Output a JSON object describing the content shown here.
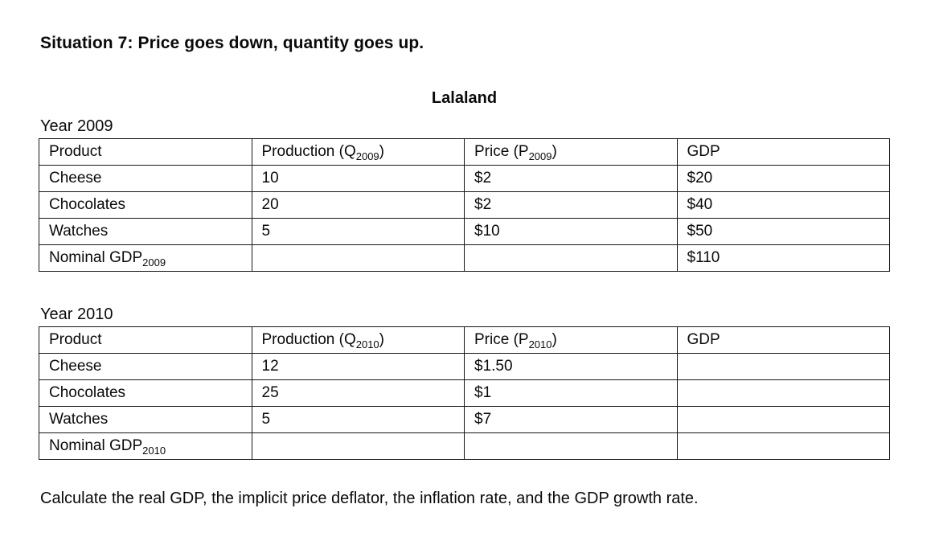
{
  "document": {
    "title": "Situation 7: Price goes down, quantity goes up.",
    "country_heading": "Lalaland",
    "instruction": "Calculate the real GDP, the implicit price deflator, the inflation rate, and the GDP growth rate."
  },
  "table_2009": {
    "section_label": "Year 2009",
    "headers": {
      "product": "Product",
      "production_pre": "Production (Q",
      "production_sub": "2009",
      "production_post": ")",
      "price_pre": "Price (P",
      "price_sub": "2009",
      "price_post": ")",
      "gdp": "GDP"
    },
    "rows": [
      {
        "product": "Cheese",
        "production": "10",
        "price": "$2",
        "gdp": "$20"
      },
      {
        "product": "Chocolates",
        "production": "20",
        "price": "$2",
        "gdp": "$40"
      },
      {
        "product": "Watches",
        "production": "5",
        "price": "$10",
        "gdp": "$50"
      }
    ],
    "total": {
      "label_pre": "Nominal GDP",
      "label_sub": "2009",
      "production": "",
      "price": "",
      "gdp": "$110"
    }
  },
  "table_2010": {
    "section_label": "Year 2010",
    "headers": {
      "product": "Product",
      "production_pre": "Production (Q",
      "production_sub": "2010",
      "production_post": ")",
      "price_pre": "Price (P",
      "price_sub": "2010",
      "price_post": ")",
      "gdp": "GDP"
    },
    "rows": [
      {
        "product": "Cheese",
        "production": "12",
        "price": "$1.50",
        "gdp": ""
      },
      {
        "product": "Chocolates",
        "production": "25",
        "price": "$1",
        "gdp": ""
      },
      {
        "product": "Watches",
        "production": "5",
        "price": "$7",
        "gdp": ""
      }
    ],
    "total": {
      "label_pre": "Nominal GDP",
      "label_sub": "2010",
      "production": "",
      "price": "",
      "gdp": ""
    }
  }
}
